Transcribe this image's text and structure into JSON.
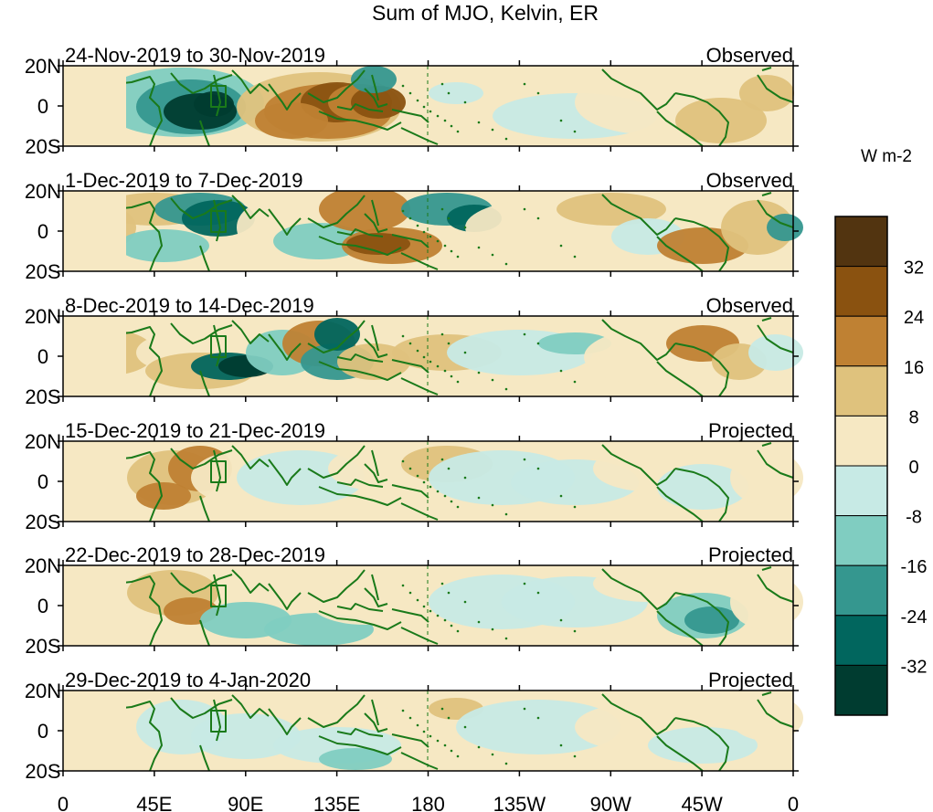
{
  "title": "Sum of MJO, Kelvin, ER",
  "units": "W m-2",
  "panels": [
    {
      "date_range": "24-Nov-2019 to 30-Nov-2019",
      "status": "Observed"
    },
    {
      "date_range": "1-Dec-2019 to 7-Dec-2019",
      "status": "Observed"
    },
    {
      "date_range": "8-Dec-2019 to 14-Dec-2019",
      "status": "Observed"
    },
    {
      "date_range": "15-Dec-2019 to 21-Dec-2019",
      "status": "Projected"
    },
    {
      "date_range": "22-Dec-2019 to 28-Dec-2019",
      "status": "Projected"
    },
    {
      "date_range": "29-Dec-2019 to 4-Jan-2020",
      "status": "Projected"
    }
  ],
  "lat_labels": [
    "20N",
    "0",
    "20S"
  ],
  "lon_labels": [
    "0",
    "45E",
    "90E",
    "135E",
    "180",
    "135W",
    "90W",
    "45W",
    "0"
  ],
  "colorbar": {
    "tick_labels": [
      "32",
      "24",
      "16",
      "8",
      "0",
      "-8",
      "-16",
      "-24",
      "-32"
    ],
    "colors": [
      "#523410",
      "#8a5210",
      "#bf8133",
      "#dfc27d",
      "#f6e8c3",
      "#c7eae5",
      "#80cdc1",
      "#35978f",
      "#01665e",
      "#003c30"
    ]
  },
  "colors": {
    "coastline": "#1a7a1a",
    "dateline": "#1a7a1a"
  }
}
